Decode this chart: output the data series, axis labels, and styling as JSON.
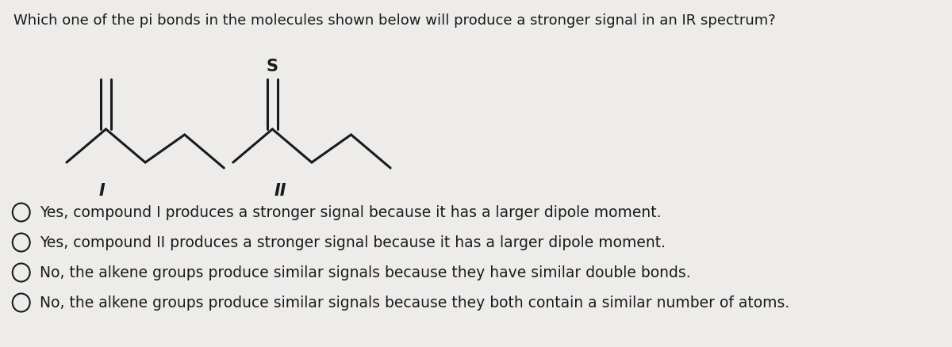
{
  "title": "Which one of the pi bonds in the molecules shown below will produce a stronger signal in an IR spectrum?",
  "title_fontsize": 13.0,
  "bg_color": "#edecea",
  "text_color": "#1a1a1a",
  "options": [
    "Yes, compound I produces a stronger signal because it has a larger dipole moment.",
    "Yes, compound II produces a stronger signal because it has a larger dipole moment.",
    "No, the alkene groups produce similar signals because they have similar double bonds.",
    "No, the alkene groups produce similar signals because they both contain a similar number of atoms."
  ],
  "label_I": "I",
  "label_II": "II",
  "label_S": "S",
  "options_fontsize": 13.5,
  "compound_label_fontsize": 15.0,
  "s_label_fontsize": 15.0,
  "lw": 2.2
}
